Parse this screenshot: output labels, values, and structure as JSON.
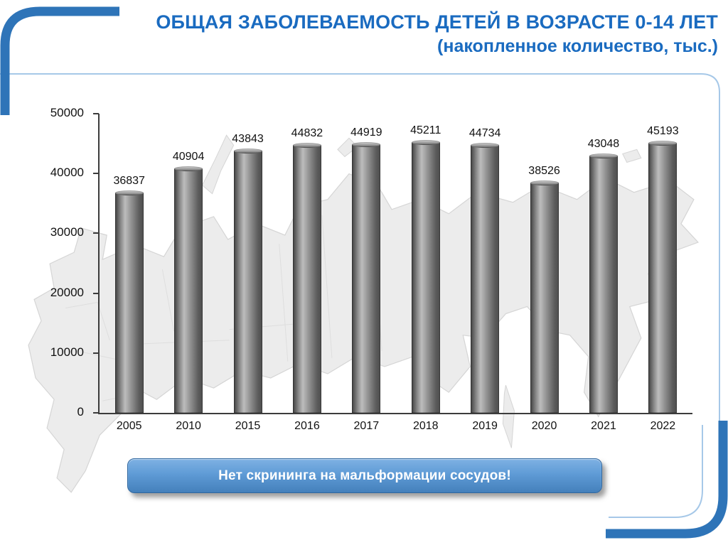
{
  "slide": {
    "title_line1": "ОБЩАЯ ЗАБОЛЕВАЕМОСТЬ ДЕТЕЙ В ВОЗРАСТЕ 0-14 ЛЕТ",
    "title_line2": "(накопленное количество, тыс.)",
    "banner": "Нет скрининга на мальформации сосудов!"
  },
  "colors": {
    "title_blue": "#1a6bc0",
    "frame_blue": "#2e74b8",
    "frame_light": "#a6c8e8",
    "banner_top": "#7eb1e3",
    "banner_bottom": "#4480bb",
    "banner_border": "#30679f",
    "axis": "#3c3c3c",
    "map_fill": "#ececec",
    "map_stroke": "#d5d5d5"
  },
  "chart_data": {
    "type": "bar",
    "title": "ОБЩАЯ ЗАБОЛЕВАЕМОСТЬ ДЕТЕЙ В ВОЗРАСТЕ 0-14 ЛЕТ (накопленное количество, тыс.)",
    "categories": [
      "2005",
      "2010",
      "2015",
      "2016",
      "2017",
      "2018",
      "2019",
      "2020",
      "2021",
      "2022"
    ],
    "values": [
      36837,
      40904,
      43843,
      44832,
      44919,
      45211,
      44734,
      38526,
      43048,
      45193
    ],
    "xlabel": "",
    "ylabel": "",
    "ylim": [
      0,
      50000
    ],
    "yticks": [
      0,
      10000,
      20000,
      30000,
      40000,
      50000
    ],
    "grid": false,
    "legend": "none",
    "bar_color_range": [
      "#474747",
      "#bdbdbd"
    ]
  }
}
